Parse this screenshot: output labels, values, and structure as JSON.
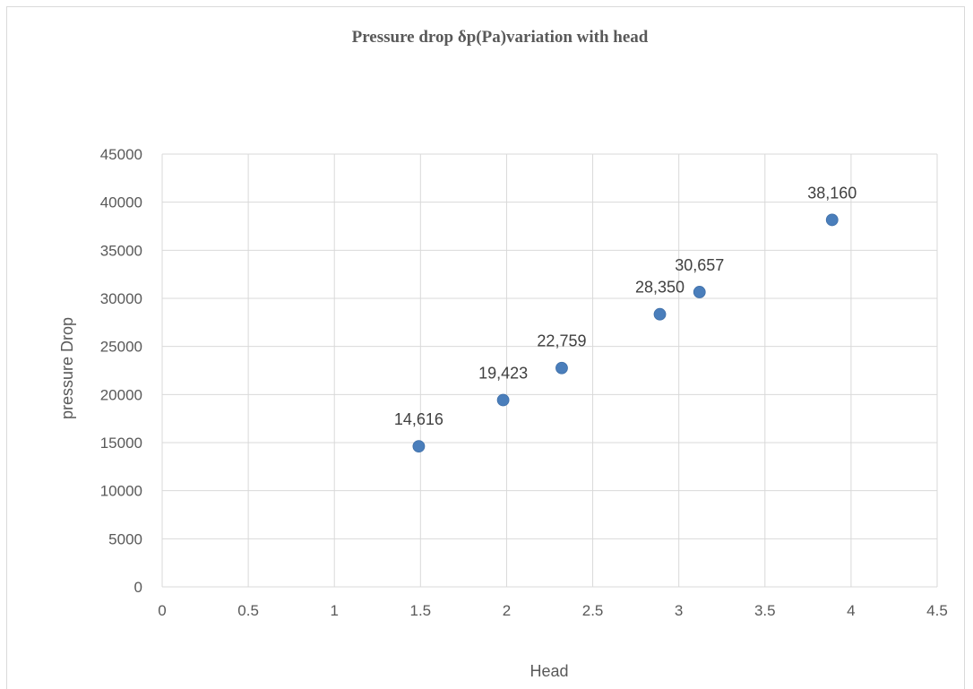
{
  "chart_data": {
    "type": "scatter",
    "title": "Pressure drop δp(Pa)variation with head",
    "xlabel": "Head",
    "ylabel": "pressure Drop",
    "xlim": [
      0,
      4.5
    ],
    "ylim": [
      0,
      45000
    ],
    "x_ticks": [
      "0",
      "0.5",
      "1",
      "1.5",
      "2",
      "2.5",
      "3",
      "3.5",
      "4",
      "4.5"
    ],
    "y_ticks": [
      "0",
      "5000",
      "10000",
      "15000",
      "20000",
      "25000",
      "30000",
      "35000",
      "40000",
      "45000"
    ],
    "grid": true,
    "series": [
      {
        "color": "#4a7ebb",
        "x": [
          1.49,
          1.98,
          2.32,
          2.89,
          3.12,
          3.89
        ],
        "y": [
          14616,
          19423,
          22759,
          28350,
          30657,
          38160
        ],
        "labels": [
          "14,616",
          "19,423",
          "22,759",
          "28,350",
          "30,657",
          "38,160"
        ]
      }
    ]
  }
}
